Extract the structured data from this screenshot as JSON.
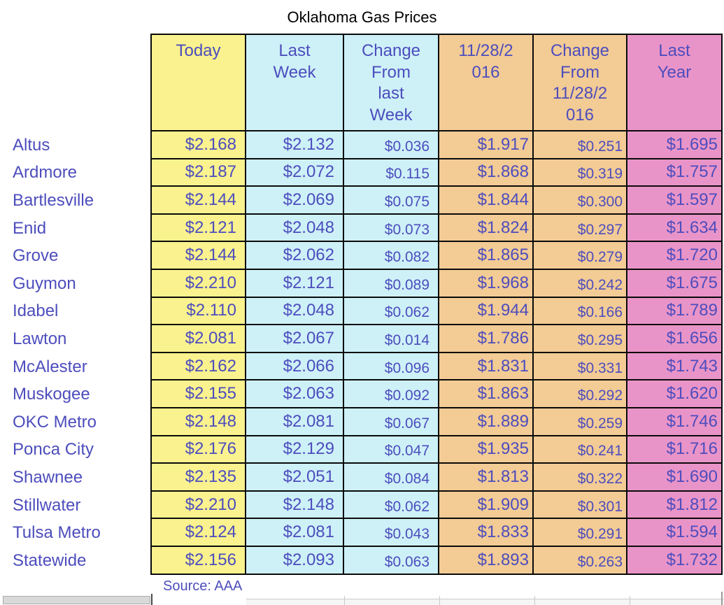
{
  "title": "Oklahoma Gas Prices",
  "source_note": "Source: AAA",
  "colors": {
    "text": "#4d4dbd",
    "title_text": "#000000",
    "border": "#0a0a0a",
    "today_column": "#f9f28e",
    "week_columns": "#cdf1f7",
    "nov2016_columns": "#f2cb95",
    "last_year_column": "#e994c8"
  },
  "chart_data": {
    "type": "table",
    "title": "Oklahoma Gas Prices",
    "columns": [
      "Today",
      "Last Week",
      "Change From last Week",
      "11/28/2016",
      "Change From 11/28/2016",
      "Last Year"
    ],
    "header_display": [
      "Today",
      "Last\nWeek",
      "Change\nFrom\nlast\nWeek",
      "11/28/2\n016",
      "Change\nFrom\n11/28/2\n016",
      "Last\nYear"
    ],
    "rows": [
      {
        "city": "Altus",
        "values": [
          "$2.168",
          "$2.132",
          "$0.036",
          "$1.917",
          "$0.251",
          "$1.695"
        ]
      },
      {
        "city": "Ardmore",
        "values": [
          "$2.187",
          "$2.072",
          "$0.115",
          "$1.868",
          "$0.319",
          "$1.757"
        ]
      },
      {
        "city": "Bartlesville",
        "values": [
          "$2.144",
          "$2.069",
          "$0.075",
          "$1.844",
          "$0.300",
          "$1.597"
        ]
      },
      {
        "city": "Enid",
        "values": [
          "$2.121",
          "$2.048",
          "$0.073",
          "$1.824",
          "$0.297",
          "$1.634"
        ]
      },
      {
        "city": "Grove",
        "values": [
          "$2.144",
          "$2.062",
          "$0.082",
          "$1.865",
          "$0.279",
          "$1.720"
        ]
      },
      {
        "city": "Guymon",
        "values": [
          "$2.210",
          "$2.121",
          "$0.089",
          "$1.968",
          "$0.242",
          "$1.675"
        ]
      },
      {
        "city": "Idabel",
        "values": [
          "$2.110",
          "$2.048",
          "$0.062",
          "$1.944",
          "$0.166",
          "$1.789"
        ]
      },
      {
        "city": "Lawton",
        "values": [
          "$2.081",
          "$2.067",
          "$0.014",
          "$1.786",
          "$0.295",
          "$1.656"
        ]
      },
      {
        "city": "McAlester",
        "values": [
          "$2.162",
          "$2.066",
          "$0.096",
          "$1.831",
          "$0.331",
          "$1.743"
        ]
      },
      {
        "city": "Muskogee",
        "values": [
          "$2.155",
          "$2.063",
          "$0.092",
          "$1.863",
          "$0.292",
          "$1.620"
        ]
      },
      {
        "city": "OKC Metro",
        "values": [
          "$2.148",
          "$2.081",
          "$0.067",
          "$1.889",
          "$0.259",
          "$1.746"
        ]
      },
      {
        "city": "Ponca City",
        "values": [
          "$2.176",
          "$2.129",
          "$0.047",
          "$1.935",
          "$0.241",
          "$1.716"
        ]
      },
      {
        "city": "Shawnee",
        "values": [
          "$2.135",
          "$2.051",
          "$0.084",
          "$1.813",
          "$0.322",
          "$1.690"
        ]
      },
      {
        "city": "Stillwater",
        "values": [
          "$2.210",
          "$2.148",
          "$0.062",
          "$1.909",
          "$0.301",
          "$1.812"
        ]
      },
      {
        "city": "Tulsa Metro",
        "values": [
          "$2.124",
          "$2.081",
          "$0.043",
          "$1.833",
          "$0.291",
          "$1.594"
        ]
      },
      {
        "city": "Statewide",
        "values": [
          "$2.156",
          "$2.093",
          "$0.063",
          "$1.893",
          "$0.263",
          "$1.732"
        ]
      }
    ]
  }
}
